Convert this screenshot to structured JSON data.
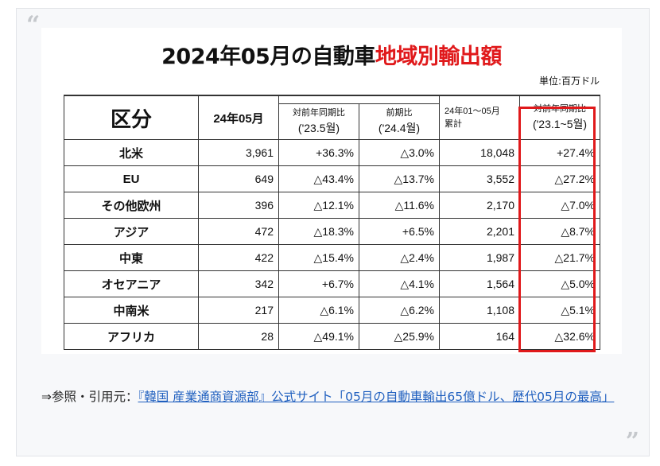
{
  "title": {
    "black": "2024年05月の自動車",
    "red": "地域別輸出額"
  },
  "unit": "単位:百万ドル",
  "headers": {
    "category": "区分",
    "month": "24年05月",
    "yoy": "対前年同期比",
    "yoy_sub": "('23.5월)",
    "mom": "前期比",
    "mom_sub": "('24.4월)",
    "cum": "24年01～05月",
    "cum_sub": "累計",
    "cum_yoy": "対前年同期比",
    "cum_yoy_sub": "('23.1~5월)"
  },
  "rows": [
    [
      "北米",
      "3,961",
      "+36.3%",
      "△3.0%",
      "18,048",
      "+27.4%"
    ],
    [
      "EU",
      "649",
      "△43.4%",
      "△13.7%",
      "3,552",
      "△27.2%"
    ],
    [
      "その他欧州",
      "396",
      "△12.1%",
      "△11.6%",
      "2,170",
      "△7.0%"
    ],
    [
      "アジア",
      "472",
      "△18.3%",
      "+6.5%",
      "2,201",
      "△8.7%"
    ],
    [
      "中東",
      "422",
      "△15.4%",
      "△2.4%",
      "1,987",
      "△21.7%"
    ],
    [
      "オセアニア",
      "342",
      "+6.7%",
      "△4.1%",
      "1,564",
      "△5.0%"
    ],
    [
      "中南米",
      "217",
      "△6.1%",
      "△6.2%",
      "1,108",
      "△5.1%"
    ],
    [
      "アフリカ",
      "28",
      "△49.1%",
      "△25.9%",
      "164",
      "△32.6%"
    ]
  ],
  "source": {
    "prefix": "⇒参照・引用元：",
    "link": "『韓国 産業通商資源部』公式サイト「05月の自動車輸出65億ドル、歴代05月の最高」"
  },
  "quote_open": "“",
  "quote_close": "”"
}
